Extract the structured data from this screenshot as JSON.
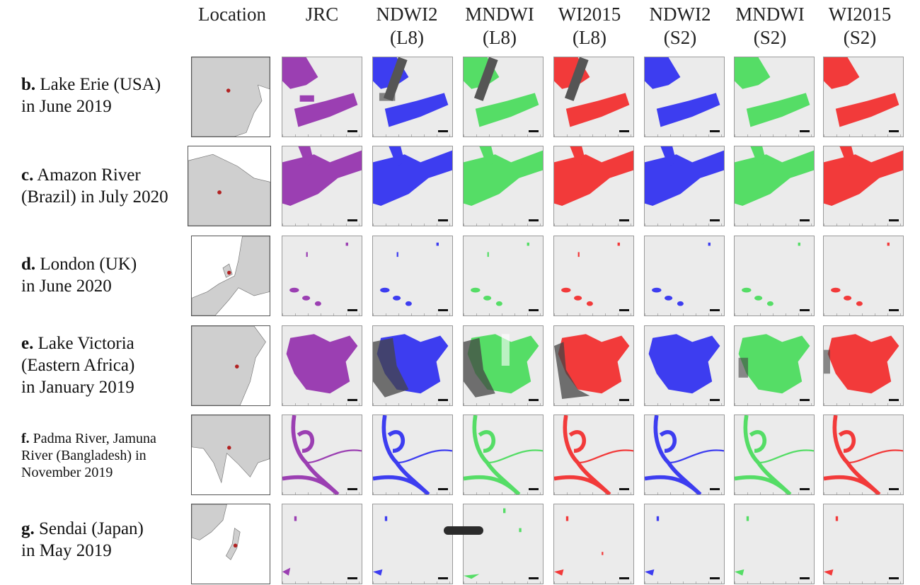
{
  "headers": {
    "location": "Location",
    "jrc": "JRC",
    "ndwi2_l8": [
      "NDWI2",
      "(L8)"
    ],
    "mndwi_l8": [
      "MNDWI",
      "(L8)"
    ],
    "wi2015_l8": [
      "WI2015",
      "(L8)"
    ],
    "ndwi2_s2": [
      "NDWI2",
      "(S2)"
    ],
    "mndwi_s2": [
      "MNDWI",
      "(S2)"
    ],
    "wi2015_s2": [
      "WI2015",
      "(S2)"
    ]
  },
  "colors": {
    "jrc": "#9b3fb2",
    "ndwi2": "#3d3df0",
    "mndwi": "#55dd66",
    "wi2015": "#f23a3a",
    "background": "#ebebeb",
    "cloud": "#555555",
    "location_marker": "#b22222",
    "land": "#cfcfcf"
  },
  "rows": [
    {
      "key": "b",
      "letter": "b.",
      "lines": [
        "Lake Erie (USA)",
        "in June 2019"
      ]
    },
    {
      "key": "c",
      "letter": "c.",
      "lines": [
        "Amazon River",
        "(Brazil) in July 2020"
      ]
    },
    {
      "key": "d",
      "letter": "d.",
      "lines": [
        "London (UK)",
        "in June 2020"
      ]
    },
    {
      "key": "e",
      "letter": "e.",
      "lines": [
        "Lake Victoria",
        "(Eastern Africa)",
        "in January 2019"
      ]
    },
    {
      "key": "f",
      "letter": "f.",
      "lines": [
        "Padma River, Jamuna",
        "River (Bangladesh) in",
        "November 2019"
      ]
    },
    {
      "key": "g",
      "letter": "g.",
      "lines": [
        "Sendai (Japan)",
        "in May 2019"
      ]
    }
  ]
}
